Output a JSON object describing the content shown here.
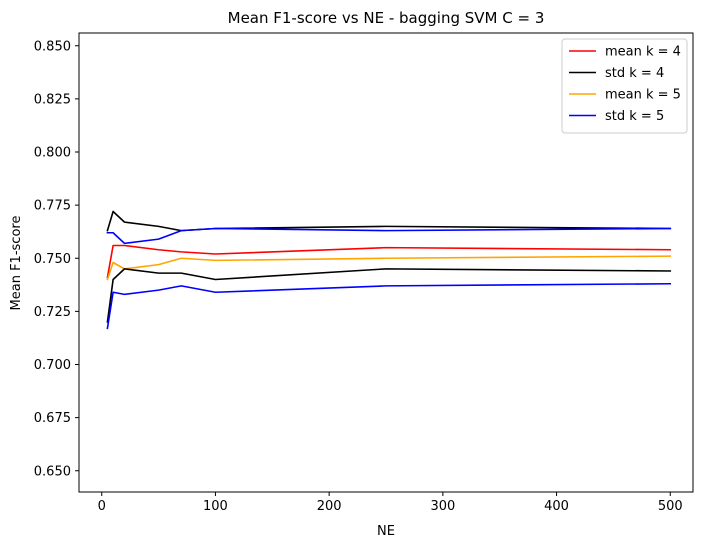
{
  "chart_data": {
    "type": "line",
    "title": "Mean F1-score vs NE - bagging SVM C = 3",
    "xlabel": "NE",
    "ylabel": "Mean F1-score",
    "xlim": [
      -20,
      520
    ],
    "ylim": [
      0.64,
      0.856
    ],
    "xticks": [
      0,
      100,
      200,
      300,
      400,
      500
    ],
    "xtick_labels": [
      "0",
      "100",
      "200",
      "300",
      "400",
      "500"
    ],
    "yticks": [
      0.65,
      0.675,
      0.7,
      0.725,
      0.75,
      0.775,
      0.8,
      0.825,
      0.85
    ],
    "ytick_labels": [
      "0.650",
      "0.675",
      "0.700",
      "0.725",
      "0.750",
      "0.775",
      "0.800",
      "0.825",
      "0.850"
    ],
    "grid": false,
    "legend_position": "top-right",
    "series": [
      {
        "name": "mean k = 4",
        "color": "#ff0000",
        "points": [
          [
            5,
            0.741
          ],
          [
            10,
            0.756
          ],
          [
            20,
            0.756
          ],
          [
            50,
            0.754
          ],
          [
            70,
            0.753
          ],
          [
            100,
            0.752
          ],
          [
            250,
            0.755
          ],
          [
            500,
            0.754
          ]
        ]
      },
      {
        "name": "std k = 4",
        "color": "#000000",
        "points": [
          [
            5,
            0.763
          ],
          [
            10,
            0.772
          ],
          [
            20,
            0.767
          ],
          [
            50,
            0.765
          ],
          [
            70,
            0.763
          ],
          [
            100,
            0.764
          ],
          [
            250,
            0.765
          ],
          [
            500,
            0.764
          ]
        ]
      },
      {
        "name": "mean k = 5",
        "color": "#ffa500",
        "points": [
          [
            5,
            0.74
          ],
          [
            10,
            0.748
          ],
          [
            20,
            0.745
          ],
          [
            50,
            0.747
          ],
          [
            70,
            0.75
          ],
          [
            100,
            0.749
          ],
          [
            250,
            0.75
          ],
          [
            500,
            0.751
          ]
        ]
      },
      {
        "name": "std k = 5",
        "color": "#0000ff",
        "points": [
          [
            5,
            0.762
          ],
          [
            10,
            0.762
          ],
          [
            20,
            0.757
          ],
          [
            50,
            0.759
          ],
          [
            70,
            0.763
          ],
          [
            100,
            0.764
          ],
          [
            250,
            0.763
          ],
          [
            500,
            0.764
          ]
        ]
      },
      {
        "name": "",
        "color": "#000000",
        "points": [
          [
            5,
            0.72
          ],
          [
            10,
            0.74
          ],
          [
            20,
            0.745
          ],
          [
            50,
            0.743
          ],
          [
            70,
            0.743
          ],
          [
            100,
            0.74
          ],
          [
            250,
            0.745
          ],
          [
            500,
            0.744
          ]
        ]
      },
      {
        "name": "",
        "color": "#0000ff",
        "points": [
          [
            5,
            0.717
          ],
          [
            10,
            0.734
          ],
          [
            20,
            0.733
          ],
          [
            50,
            0.735
          ],
          [
            70,
            0.737
          ],
          [
            100,
            0.734
          ],
          [
            250,
            0.737
          ],
          [
            500,
            0.738
          ]
        ]
      }
    ]
  }
}
